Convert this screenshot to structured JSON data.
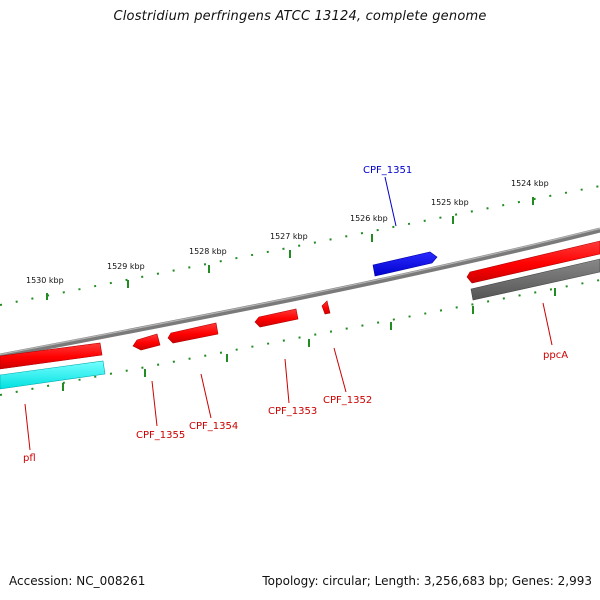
{
  "title": "Clostridium perfringens ATCC 13124, complete genome",
  "footer": {
    "accession": "Accession: NC_008261",
    "topology": "Topology: circular; Length: 3,256,683 bp; Genes: 2,993"
  },
  "colors": {
    "forward_gene": "#ff0000",
    "reverse_gene_highlight": "#0000ff",
    "rrna_like": "#00ffff",
    "gray_feature": "#666666",
    "backbone": "#808080",
    "ticks": "#228b22",
    "label_red": "#cc0000",
    "label_blue": "#0000cc"
  },
  "scale_labels": [
    "1530 kbp",
    "1529 kbp",
    "1528 kbp",
    "1527 kbp",
    "1526 kbp",
    "1525 kbp",
    "1524 kbp"
  ],
  "gene_labels": {
    "CPF_1351": "CPF_1351",
    "CPF_1352": "CPF_1352",
    "CPF_1353": "CPF_1353",
    "CPF_1354": "CPF_1354",
    "CPF_1355": "CPF_1355",
    "ppcA": "ppcA",
    "pfl": "pfl"
  }
}
